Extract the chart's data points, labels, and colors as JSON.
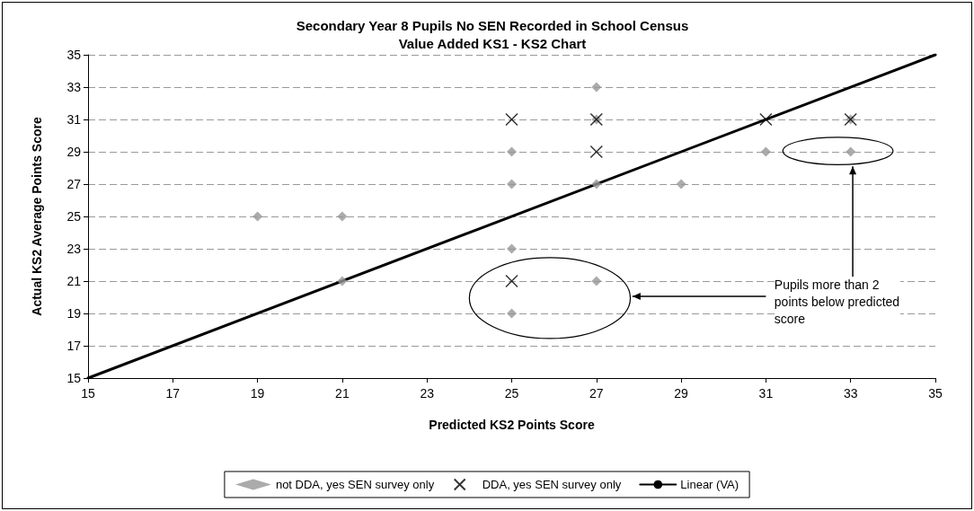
{
  "chart_data": {
    "type": "scatter",
    "title": "Secondary Year 8 Pupils No SEN Recorded in School Census\nValue Added KS1 - KS2 Chart",
    "xlabel": "Predicted KS2 Points Score",
    "ylabel": "Actual KS2 Average Points Score",
    "xlim": [
      15,
      35
    ],
    "xticks": [
      15,
      17,
      19,
      21,
      23,
      25,
      27,
      29,
      31,
      33,
      35
    ],
    "ylim": [
      15,
      35
    ],
    "yticks": [
      15,
      17,
      19,
      21,
      23,
      25,
      27,
      29,
      31,
      33,
      35
    ],
    "grid": "y",
    "legend": "bottom",
    "annotations": [
      "Pupils more than 2 points below predicted score"
    ],
    "series": [
      {
        "name": "not DDA, yes SEN survey only",
        "color": "#969696",
        "marker": "diamond",
        "x": [
          19,
          21,
          21,
          25,
          25,
          25,
          25,
          27,
          27,
          27,
          27,
          29,
          31,
          33,
          33
        ],
        "values": [
          25,
          25,
          21,
          29,
          27,
          23,
          19,
          33,
          31,
          27,
          21,
          27,
          29,
          29,
          31
        ]
      },
      {
        "name": "DDA, yes SEN survey only",
        "color": "#000000",
        "marker": "cross",
        "x": [
          25,
          27,
          27,
          25,
          31,
          33
        ],
        "values": [
          31,
          31,
          29,
          21,
          31,
          31
        ]
      },
      {
        "name": "Linear (VA)",
        "type": "line",
        "color": "#000000",
        "marker": "none",
        "line_style": "solid",
        "x": [
          15,
          35
        ],
        "values": [
          15,
          35
        ]
      }
    ]
  }
}
